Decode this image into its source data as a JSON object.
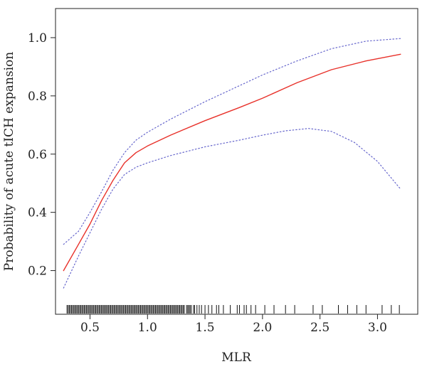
{
  "chart_data": {
    "type": "line",
    "xlabel": "MLR",
    "ylabel": "Probability of acute tICH expansion",
    "xlim": [
      0.2,
      3.35
    ],
    "ylim": [
      0.05,
      1.1
    ],
    "x_ticks": [
      0.5,
      1.0,
      1.5,
      2.0,
      2.5,
      3.0
    ],
    "x_tick_labels": [
      "0.5",
      "1.0",
      "1.5",
      "2.0",
      "2.5",
      "3.0"
    ],
    "y_ticks": [
      0.2,
      0.4,
      0.6,
      0.8,
      1.0
    ],
    "y_tick_labels": [
      "0.2",
      "0.4",
      "0.6",
      "0.8",
      "1.0"
    ],
    "grid": false,
    "series": [
      {
        "role": "estimate",
        "color": "#e8312a",
        "x": [
          0.27,
          0.4,
          0.5,
          0.6,
          0.7,
          0.8,
          0.9,
          1.0,
          1.2,
          1.5,
          1.8,
          2.0,
          2.3,
          2.6,
          2.9,
          3.2
        ],
        "y": [
          0.2,
          0.29,
          0.36,
          0.44,
          0.51,
          0.57,
          0.605,
          0.628,
          0.665,
          0.715,
          0.76,
          0.792,
          0.845,
          0.89,
          0.92,
          0.943
        ]
      },
      {
        "role": "upper",
        "color": "#6666cc",
        "x": [
          0.27,
          0.4,
          0.5,
          0.6,
          0.7,
          0.8,
          0.9,
          1.0,
          1.2,
          1.5,
          1.8,
          2.0,
          2.3,
          2.6,
          2.9,
          3.2
        ],
        "y": [
          0.29,
          0.335,
          0.4,
          0.47,
          0.545,
          0.605,
          0.648,
          0.675,
          0.72,
          0.78,
          0.835,
          0.872,
          0.92,
          0.962,
          0.988,
          0.997
        ]
      },
      {
        "role": "lower",
        "color": "#6666cc",
        "x": [
          0.27,
          0.4,
          0.5,
          0.6,
          0.7,
          0.8,
          0.9,
          1.0,
          1.2,
          1.5,
          1.8,
          2.0,
          2.2,
          2.4,
          2.6,
          2.8,
          3.0,
          3.2
        ],
        "y": [
          0.14,
          0.25,
          0.33,
          0.41,
          0.48,
          0.53,
          0.555,
          0.57,
          0.595,
          0.625,
          0.648,
          0.665,
          0.68,
          0.688,
          0.678,
          0.64,
          0.575,
          0.48
        ]
      }
    ],
    "rug": [
      0.3,
      0.31,
      0.32,
      0.33,
      0.34,
      0.35,
      0.36,
      0.37,
      0.38,
      0.39,
      0.4,
      0.41,
      0.42,
      0.43,
      0.44,
      0.45,
      0.46,
      0.47,
      0.48,
      0.49,
      0.5,
      0.51,
      0.52,
      0.53,
      0.54,
      0.55,
      0.56,
      0.57,
      0.58,
      0.59,
      0.6,
      0.61,
      0.62,
      0.63,
      0.64,
      0.65,
      0.66,
      0.67,
      0.68,
      0.69,
      0.7,
      0.71,
      0.72,
      0.73,
      0.74,
      0.75,
      0.76,
      0.77,
      0.78,
      0.79,
      0.8,
      0.81,
      0.82,
      0.83,
      0.84,
      0.85,
      0.86,
      0.87,
      0.88,
      0.89,
      0.9,
      0.91,
      0.92,
      0.93,
      0.94,
      0.95,
      0.96,
      0.97,
      0.98,
      0.99,
      1.0,
      1.01,
      1.02,
      1.03,
      1.04,
      1.05,
      1.06,
      1.07,
      1.08,
      1.09,
      1.1,
      1.11,
      1.12,
      1.13,
      1.14,
      1.15,
      1.16,
      1.17,
      1.18,
      1.19,
      1.2,
      1.21,
      1.22,
      1.23,
      1.24,
      1.25,
      1.26,
      1.27,
      1.28,
      1.29,
      1.3,
      1.31,
      1.32,
      1.34,
      1.35,
      1.36,
      1.37,
      1.38,
      1.4,
      1.41,
      1.43,
      1.45,
      1.47,
      1.5,
      1.53,
      1.56,
      1.6,
      1.62,
      1.66,
      1.72,
      1.78,
      1.8,
      1.84,
      1.86,
      1.9,
      1.94,
      2.02,
      2.1,
      2.2,
      2.28,
      2.44,
      2.52,
      2.66,
      2.74,
      2.82,
      2.9,
      3.04,
      3.12,
      3.19
    ]
  }
}
